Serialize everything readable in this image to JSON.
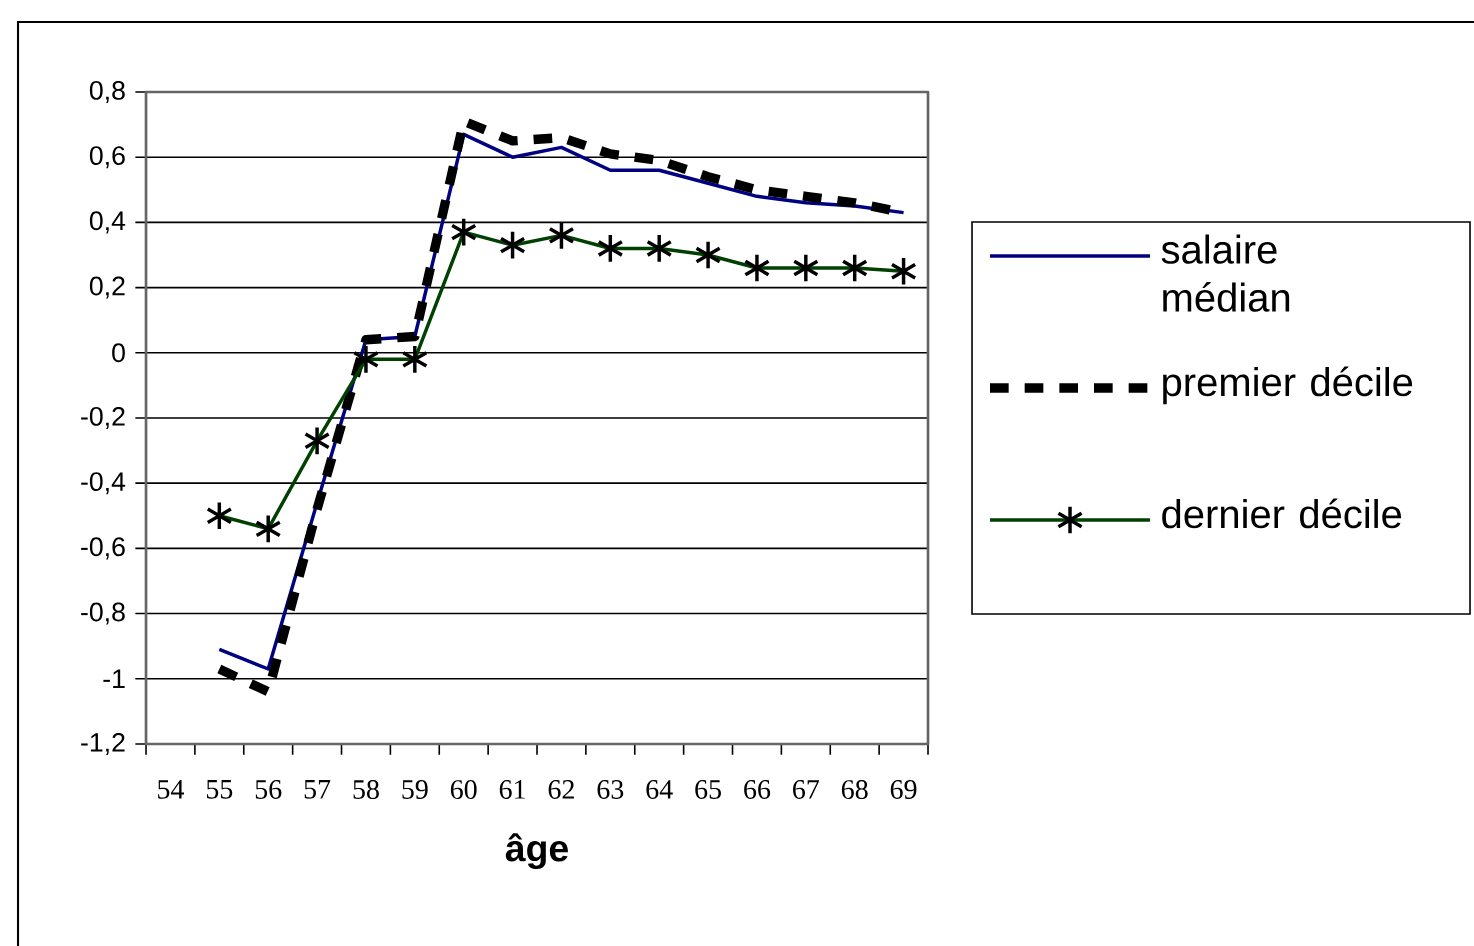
{
  "chart_data": {
    "type": "line",
    "xlabel": "âge",
    "categories": [
      "54",
      "55",
      "56",
      "57",
      "58",
      "59",
      "60",
      "61",
      "62",
      "63",
      "64",
      "65",
      "66",
      "67",
      "68",
      "69"
    ],
    "series": [
      {
        "name": "salaire médian",
        "color": "#000080",
        "line_style": "solid",
        "marker": "none",
        "values": [
          null,
          -0.91,
          -0.97,
          -0.46,
          0.04,
          0.05,
          0.67,
          0.6,
          0.63,
          0.56,
          0.56,
          0.52,
          0.48,
          0.46,
          0.45,
          0.43
        ]
      },
      {
        "name": "premier décile",
        "color": "#000000",
        "line_style": "dashed",
        "marker": "none",
        "values": [
          null,
          -0.97,
          -1.04,
          -0.48,
          0.04,
          0.05,
          0.71,
          0.65,
          0.66,
          0.61,
          0.59,
          0.54,
          0.5,
          0.48,
          0.46,
          0.43
        ]
      },
      {
        "name": "dernier décile",
        "color": "#004000",
        "line_style": "solid",
        "marker": "cross",
        "values": [
          null,
          -0.5,
          -0.54,
          -0.27,
          -0.02,
          -0.02,
          0.37,
          0.33,
          0.36,
          0.32,
          0.32,
          0.3,
          0.26,
          0.26,
          0.26,
          0.25
        ]
      }
    ],
    "ylim": [
      -1.2,
      0.8
    ],
    "yticks": [
      {
        "value": -1.2,
        "label": "-1,2"
      },
      {
        "value": -1,
        "label": "-1"
      },
      {
        "value": -0.8,
        "label": "-0,8"
      },
      {
        "value": -0.6,
        "label": "-0,6"
      },
      {
        "value": -0.4,
        "label": "-0,4"
      },
      {
        "value": -0.2,
        "label": "-0,2"
      },
      0,
      {
        "value": 0.2,
        "label": "0,2"
      },
      {
        "value": 0.4,
        "label": "0,4"
      },
      {
        "value": 0.6,
        "label": "0,6"
      },
      {
        "value": 0.8,
        "label": "0,8"
      }
    ],
    "grid": "y",
    "legend": "right"
  }
}
